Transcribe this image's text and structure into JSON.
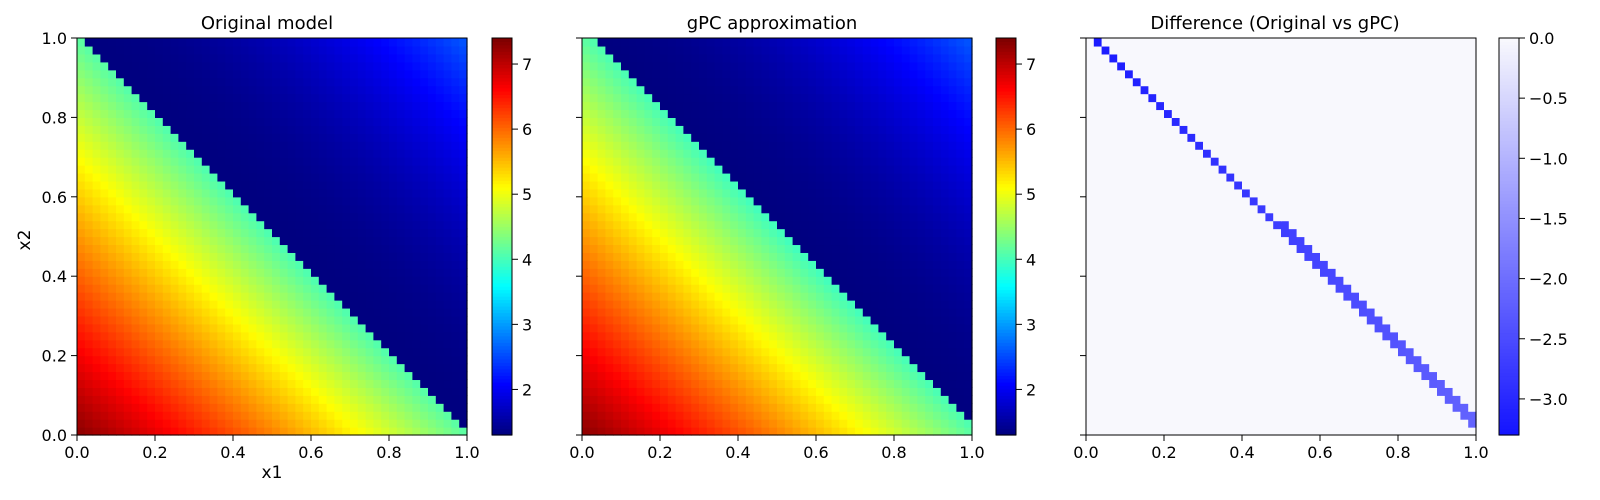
{
  "chart_data": [
    {
      "type": "heatmap",
      "title": "Original model",
      "xlabel": "x1",
      "ylabel": "x2",
      "xlim": [
        0.0,
        1.0
      ],
      "ylim": [
        0.0,
        1.0
      ],
      "grid_size": 50,
      "colormap": "jet",
      "color_range": [
        1.3,
        7.4
      ],
      "field_description": "value ~ 7.3 at (0,0) decreasing to ~3.4 near the diagonal x1+x2=1 (lower-left region); ~1.3 just above diagonal rising to ~2.6 at (1,1)",
      "xticks": [
        "0.0",
        "0.2",
        "0.4",
        "0.6",
        "0.8",
        "1.0"
      ],
      "yticks": [
        "0.0",
        "0.2",
        "0.4",
        "0.6",
        "0.8",
        "1.0"
      ],
      "colorbar_ticks": [
        "2",
        "3",
        "4",
        "5",
        "6",
        "7"
      ],
      "colorbar_values": [
        2,
        3,
        4,
        5,
        6,
        7
      ]
    },
    {
      "type": "heatmap",
      "title": "gPC approximation",
      "xlabel": "",
      "ylabel": "",
      "xlim": [
        0.0,
        1.0
      ],
      "ylim": [
        0.0,
        1.0
      ],
      "grid_size": 50,
      "colormap": "jet",
      "color_range": [
        1.3,
        7.4
      ],
      "field_description": "same as original model with the boundary shifted slightly above the diagonal",
      "xticks": [
        "0.0",
        "0.2",
        "0.4",
        "0.6",
        "0.8",
        "1.0"
      ],
      "yticks": [],
      "colorbar_ticks": [
        "2",
        "3",
        "4",
        "5",
        "6",
        "7"
      ],
      "colorbar_values": [
        2,
        3,
        4,
        5,
        6,
        7
      ]
    },
    {
      "type": "heatmap",
      "title": "Difference (Original vs gPC)",
      "xlabel": "",
      "ylabel": "",
      "xlim": [
        0.0,
        1.0
      ],
      "ylim": [
        0.0,
        1.0
      ],
      "grid_size": 50,
      "colormap": "blue-white",
      "color_range": [
        -3.3,
        0.0
      ],
      "field_description": "zero everywhere except a thin band along x1+x2=1, values between about -3.2 (upper left) and -2.0 (lower right)",
      "xticks": [
        "0.0",
        "0.2",
        "0.4",
        "0.6",
        "0.8",
        "1.0"
      ],
      "yticks": [],
      "colorbar_ticks": [
        "0.0",
        "−0.5",
        "−1.0",
        "−1.5",
        "−2.0",
        "−2.5",
        "−3.0"
      ],
      "colorbar_values": [
        0.0,
        -0.5,
        -1.0,
        -1.5,
        -2.0,
        -2.5,
        -3.0
      ]
    }
  ]
}
